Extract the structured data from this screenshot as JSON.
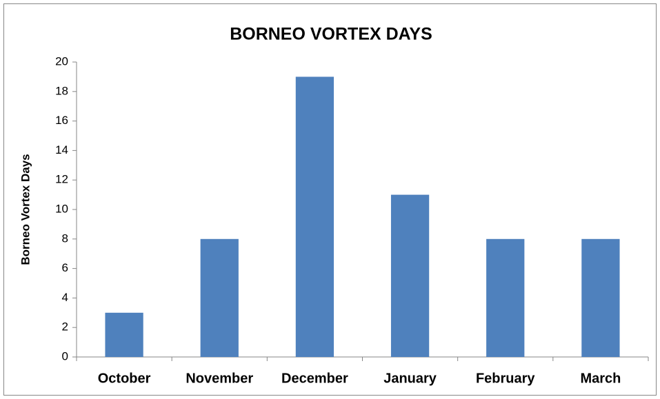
{
  "chart_data": {
    "type": "bar",
    "title": "BORNEO VORTEX DAYS",
    "y_label": "Borneo Vortex Days",
    "categories": [
      "October",
      "November",
      "December",
      "January",
      "February",
      "March"
    ],
    "values": [
      3,
      8,
      19,
      11,
      8,
      8
    ],
    "color": "#4f81bd",
    "ylim": [
      0,
      20
    ],
    "yticks": [
      0,
      2,
      4,
      6,
      8,
      10,
      12,
      14,
      16,
      18,
      20
    ],
    "grid": false
  }
}
